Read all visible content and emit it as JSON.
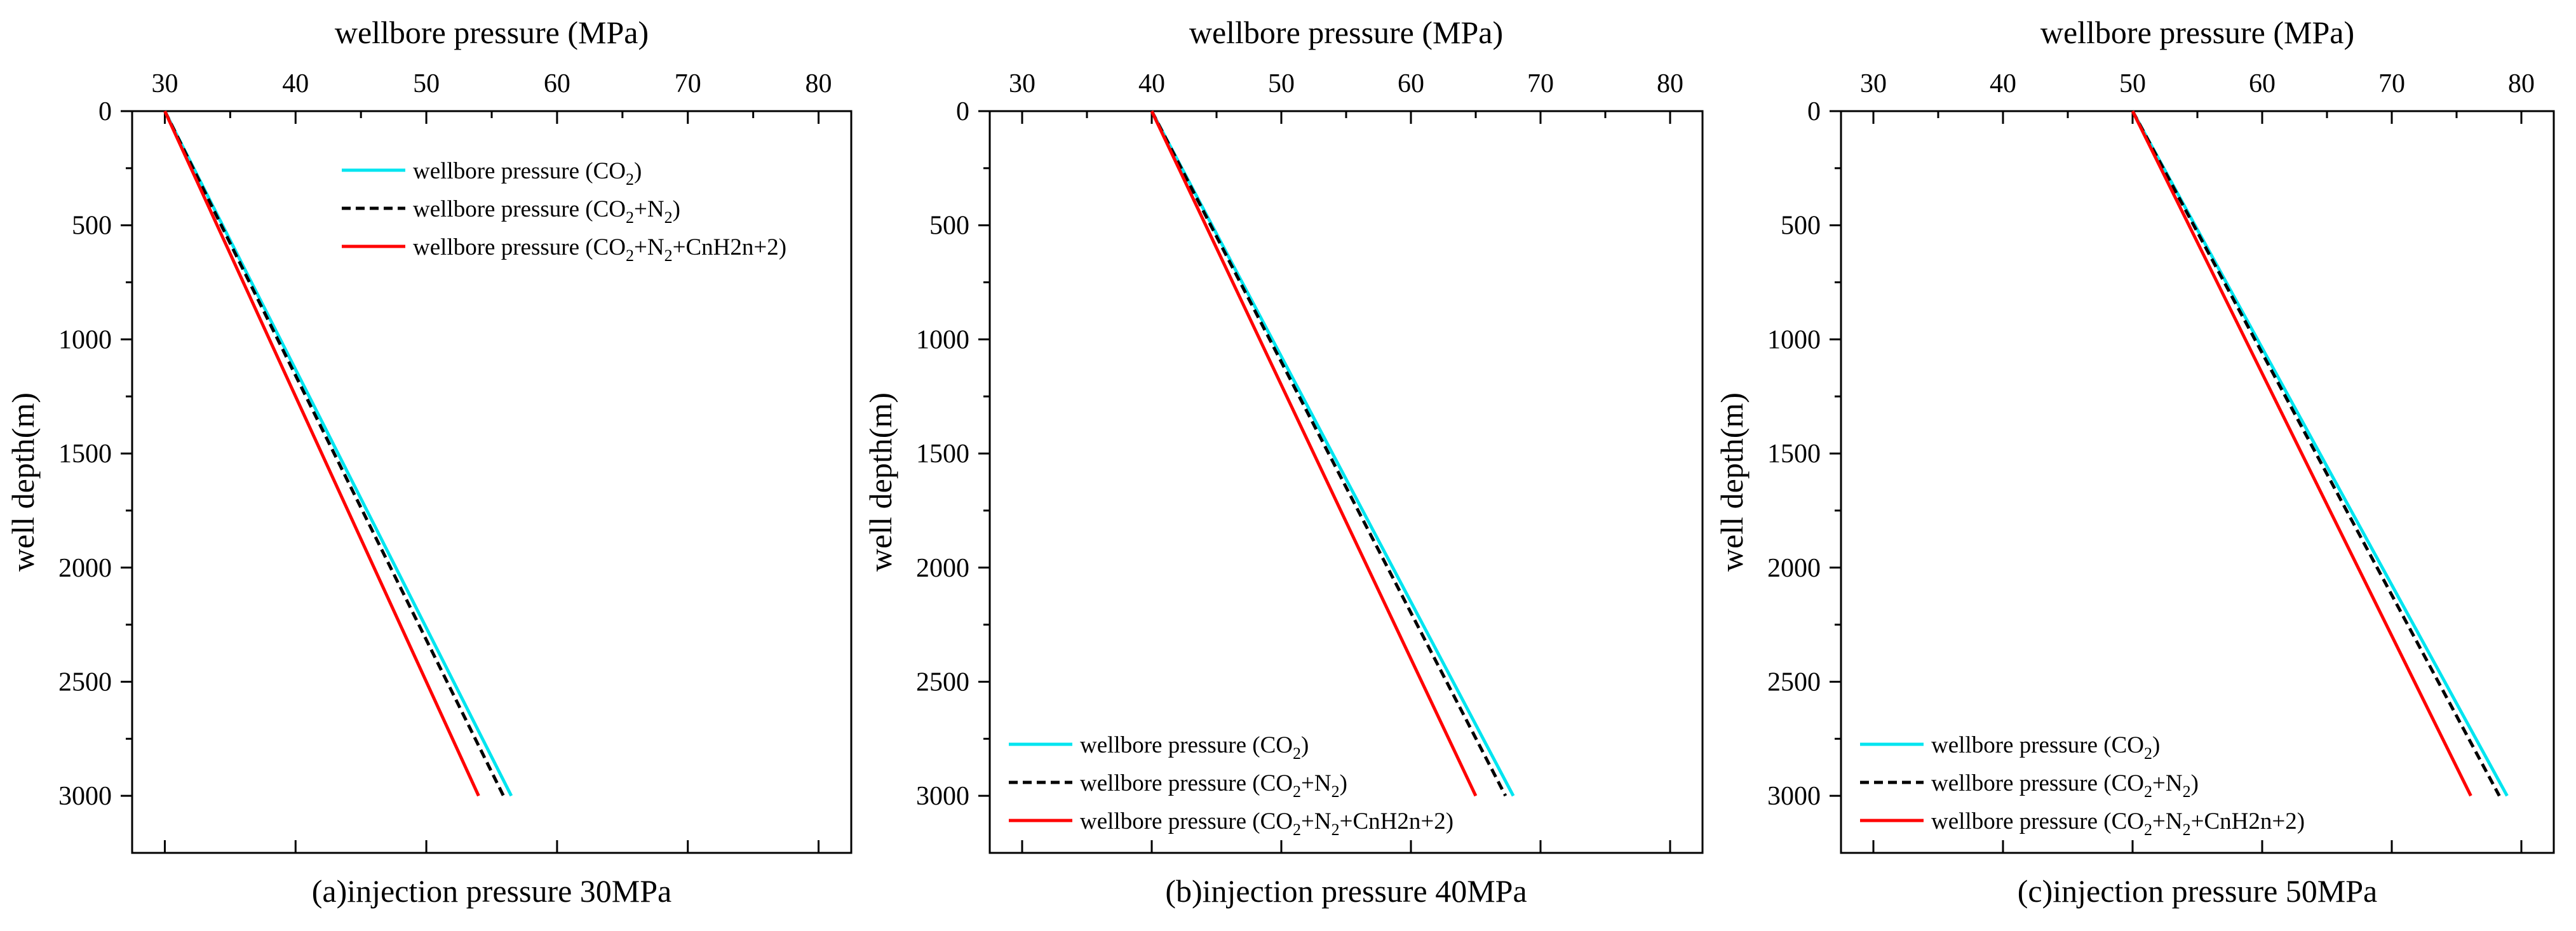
{
  "chart_data": [
    {
      "type": "line",
      "caption": "(a)injection pressure 30MPa",
      "xlabel": "wellbore pressure (MPa)",
      "ylabel": "well depth(m)",
      "xlim": [
        27.5,
        82.5
      ],
      "ylim": [
        3250,
        0
      ],
      "xticks": [
        30,
        40,
        50,
        60,
        70,
        80
      ],
      "yticks": [
        0,
        500,
        1000,
        1500,
        2000,
        2500,
        3000
      ],
      "legend_position": "top-center",
      "series": [
        {
          "name": "wellbore pressure (CO2)",
          "color": "#00E5F0",
          "dash": "solid",
          "x": [
            30,
            56.5
          ],
          "y": [
            0,
            3000
          ]
        },
        {
          "name": "wellbore pressure (CO2+N2)",
          "color": "#000000",
          "dash": "dashed",
          "x": [
            30,
            55.9
          ],
          "y": [
            0,
            3000
          ]
        },
        {
          "name": "wellbore pressure (CO2+N2+CnH2n+2)",
          "color": "#FF0000",
          "dash": "solid",
          "x": [
            30,
            54.0
          ],
          "y": [
            0,
            3000
          ]
        }
      ]
    },
    {
      "type": "line",
      "caption": "(b)injection pressure 40MPa",
      "xlabel": "wellbore pressure (MPa)",
      "ylabel": "well depth(m)",
      "xlim": [
        27.5,
        82.5
      ],
      "ylim": [
        3250,
        0
      ],
      "xticks": [
        30,
        40,
        50,
        60,
        70,
        80
      ],
      "yticks": [
        0,
        500,
        1000,
        1500,
        2000,
        2500,
        3000
      ],
      "legend_position": "bottom-left",
      "series": [
        {
          "name": "wellbore pressure (CO2)",
          "color": "#00E5F0",
          "dash": "solid",
          "x": [
            40,
            67.9
          ],
          "y": [
            0,
            3000
          ]
        },
        {
          "name": "wellbore pressure (CO2+N2)",
          "color": "#000000",
          "dash": "dashed",
          "x": [
            40,
            67.3
          ],
          "y": [
            0,
            3000
          ]
        },
        {
          "name": "wellbore pressure (CO2+N2+CnH2n+2)",
          "color": "#FF0000",
          "dash": "solid",
          "x": [
            40,
            65.0
          ],
          "y": [
            0,
            3000
          ]
        }
      ]
    },
    {
      "type": "line",
      "caption": "(c)injection pressure 50MPa",
      "xlabel": "wellbore pressure (MPa)",
      "ylabel": "well depth(m)",
      "xlim": [
        27.5,
        82.5
      ],
      "ylim": [
        3250,
        0
      ],
      "xticks": [
        30,
        40,
        50,
        60,
        70,
        80
      ],
      "yticks": [
        0,
        500,
        1000,
        1500,
        2000,
        2500,
        3000
      ],
      "legend_position": "bottom-left",
      "series": [
        {
          "name": "wellbore pressure (CO2)",
          "color": "#00E5F0",
          "dash": "solid",
          "x": [
            50,
            78.9
          ],
          "y": [
            0,
            3000
          ]
        },
        {
          "name": "wellbore pressure (CO2+N2)",
          "color": "#000000",
          "dash": "dashed",
          "x": [
            50,
            78.3
          ],
          "y": [
            0,
            3000
          ]
        },
        {
          "name": "wellbore pressure (CO2+N2+CnH2n+2)",
          "color": "#FF0000",
          "dash": "solid",
          "x": [
            50,
            76.1
          ],
          "y": [
            0,
            3000
          ]
        }
      ]
    }
  ]
}
